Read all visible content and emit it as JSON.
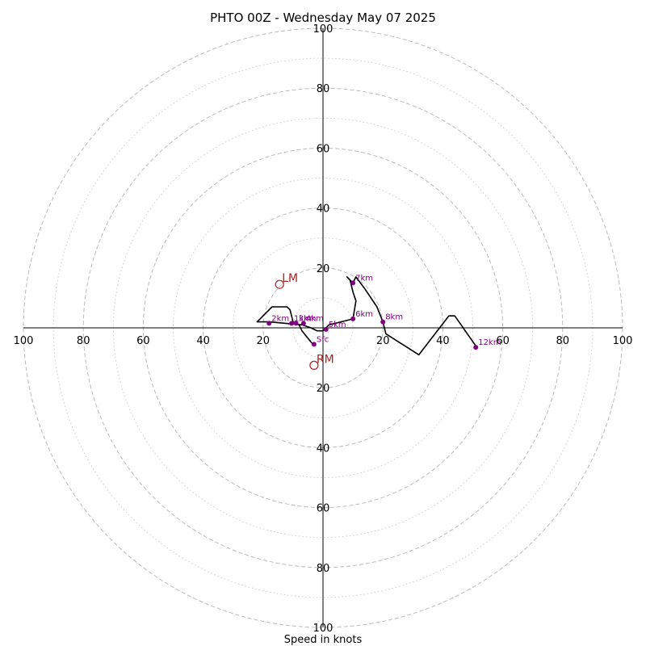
{
  "chart_data": {
    "type": "hodograph",
    "title": "PHTO 00Z - Wednesday May 07 2025",
    "xlabel": "Speed in knots",
    "max_speed": 100,
    "ring_major": [
      20,
      40,
      60,
      80,
      100
    ],
    "ring_minor": [
      10,
      30,
      50,
      70,
      90
    ],
    "tick_labels": {
      "x_left": [
        "100",
        "80",
        "60",
        "40",
        "20"
      ],
      "x_right": [
        "20",
        "40",
        "60",
        "80",
        "100"
      ],
      "y_up": [
        "20",
        "40",
        "60",
        "80",
        "100"
      ],
      "y_down": [
        "20",
        "40",
        "60",
        "80",
        "100"
      ]
    },
    "colors": {
      "trace": "#000000",
      "height_marker": "#800080",
      "motion_marker": "#b22222",
      "ring_major": "#bbbbbb",
      "ring_minor": "#cccccc"
    },
    "trace": [
      [
        -3,
        -6
      ],
      [
        -7,
        -1
      ],
      [
        -8,
        1
      ],
      [
        -10,
        2
      ],
      [
        -11,
        6
      ],
      [
        -12,
        7
      ],
      [
        -17,
        7
      ],
      [
        -21,
        3
      ],
      [
        -22,
        2
      ],
      [
        -18,
        2
      ],
      [
        -7,
        1
      ],
      [
        -4,
        0
      ],
      [
        -2,
        -1
      ],
      [
        0,
        -1
      ],
      [
        2,
        1
      ],
      [
        6,
        2
      ],
      [
        10,
        3
      ],
      [
        11,
        9
      ],
      [
        10,
        12
      ],
      [
        9,
        16
      ],
      [
        8,
        17
      ],
      [
        10,
        15
      ],
      [
        11,
        17
      ],
      [
        14,
        13
      ],
      [
        18,
        7
      ],
      [
        20,
        2
      ],
      [
        21,
        -2
      ],
      [
        32,
        -9
      ],
      [
        42,
        4
      ],
      [
        44,
        4
      ],
      [
        51,
        -6
      ]
    ],
    "height_markers": [
      {
        "label": "Sfc",
        "u": -3,
        "v": -5.5
      },
      {
        "label": "1km",
        "u": -10.5,
        "v": 1.5
      },
      {
        "label": "2km",
        "u": -18,
        "v": 1.5
      },
      {
        "label": "3km",
        "u": -9,
        "v": 1.5
      },
      {
        "label": "4km",
        "u": -6.5,
        "v": 1.5
      },
      {
        "label": "5km",
        "u": 1,
        "v": -0.5
      },
      {
        "label": "6km",
        "u": 10,
        "v": 3
      },
      {
        "label": "7km",
        "u": 10,
        "v": 15
      },
      {
        "label": "8km",
        "u": 20,
        "v": 2
      },
      {
        "label": "12km",
        "u": 51,
        "v": -6.5
      }
    ],
    "storm_motion": [
      {
        "label": "LM",
        "u": -14.5,
        "v": 14.5
      },
      {
        "label": "RM",
        "u": -3,
        "v": -12.5
      }
    ]
  }
}
